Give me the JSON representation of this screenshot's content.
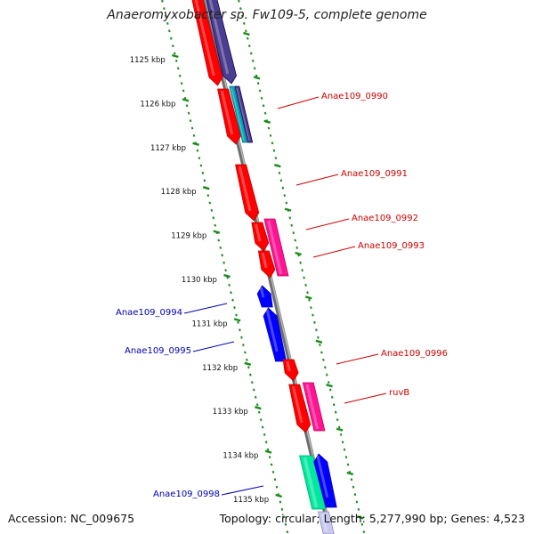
{
  "title": "Anaeromyxobacter sp. Fw109-5, complete genome",
  "footer": {
    "accession": "Accession: NC_009675",
    "summary": "Topology: circular; Length: 5,277,990 bp; Genes: 4,523"
  },
  "colors": {
    "backbone": "#8c8c8c",
    "tick_ruler": "#1a8c1a",
    "label_plus": "#cc0000",
    "label_minus": "#0000b0",
    "red": "#ff0000",
    "magenta": "#ff1493",
    "navy": "#4b3d8f",
    "cyan": "#00b0c0",
    "blue": "#0000ff",
    "teal": "#00e8a0",
    "lavender": "#c8c8f0"
  },
  "scale_labels": [
    "1125 kbp",
    "1126 kbp",
    "1127 kbp",
    "1128 kbp",
    "1129 kbp",
    "1130 kbp",
    "1131 kbp",
    "1132 kbp",
    "1133 kbp",
    "1134 kbp",
    "1135 kbp"
  ],
  "gene_labels": [
    {
      "name": "Anae109_0990",
      "strand": "+"
    },
    {
      "name": "Anae109_0991",
      "strand": "+"
    },
    {
      "name": "Anae109_0992",
      "strand": "+"
    },
    {
      "name": "Anae109_0993",
      "strand": "+"
    },
    {
      "name": "Anae109_0994",
      "strand": "-"
    },
    {
      "name": "Anae109_0995",
      "strand": "-"
    },
    {
      "name": "Anae109_0996",
      "strand": "+"
    },
    {
      "name": "ruvB",
      "strand": "+"
    },
    {
      "name": "Anae109_0998",
      "strand": "-"
    }
  ],
  "features": [
    {
      "id": "f1",
      "color": "red",
      "dir": "down"
    },
    {
      "id": "f2",
      "color": "navy",
      "dir": "down"
    },
    {
      "id": "f3",
      "color": "red",
      "dir": "down"
    },
    {
      "id": "f4",
      "color": "cyan",
      "dir": "none"
    },
    {
      "id": "f5",
      "color": "navy",
      "dir": "none"
    },
    {
      "id": "f6",
      "color": "red",
      "dir": "down"
    },
    {
      "id": "f7",
      "color": "red",
      "dir": "down"
    },
    {
      "id": "f8",
      "color": "red",
      "dir": "down"
    },
    {
      "id": "f9",
      "color": "magenta",
      "dir": "none"
    },
    {
      "id": "f10",
      "color": "blue",
      "dir": "up"
    },
    {
      "id": "f11",
      "color": "blue",
      "dir": "up"
    },
    {
      "id": "f12",
      "color": "red",
      "dir": "down"
    },
    {
      "id": "f13",
      "color": "red",
      "dir": "down"
    },
    {
      "id": "f14",
      "color": "magenta",
      "dir": "none"
    },
    {
      "id": "f15",
      "color": "teal",
      "dir": "none"
    },
    {
      "id": "f16",
      "color": "blue",
      "dir": "up"
    },
    {
      "id": "f17",
      "color": "lavender",
      "dir": "none"
    }
  ]
}
